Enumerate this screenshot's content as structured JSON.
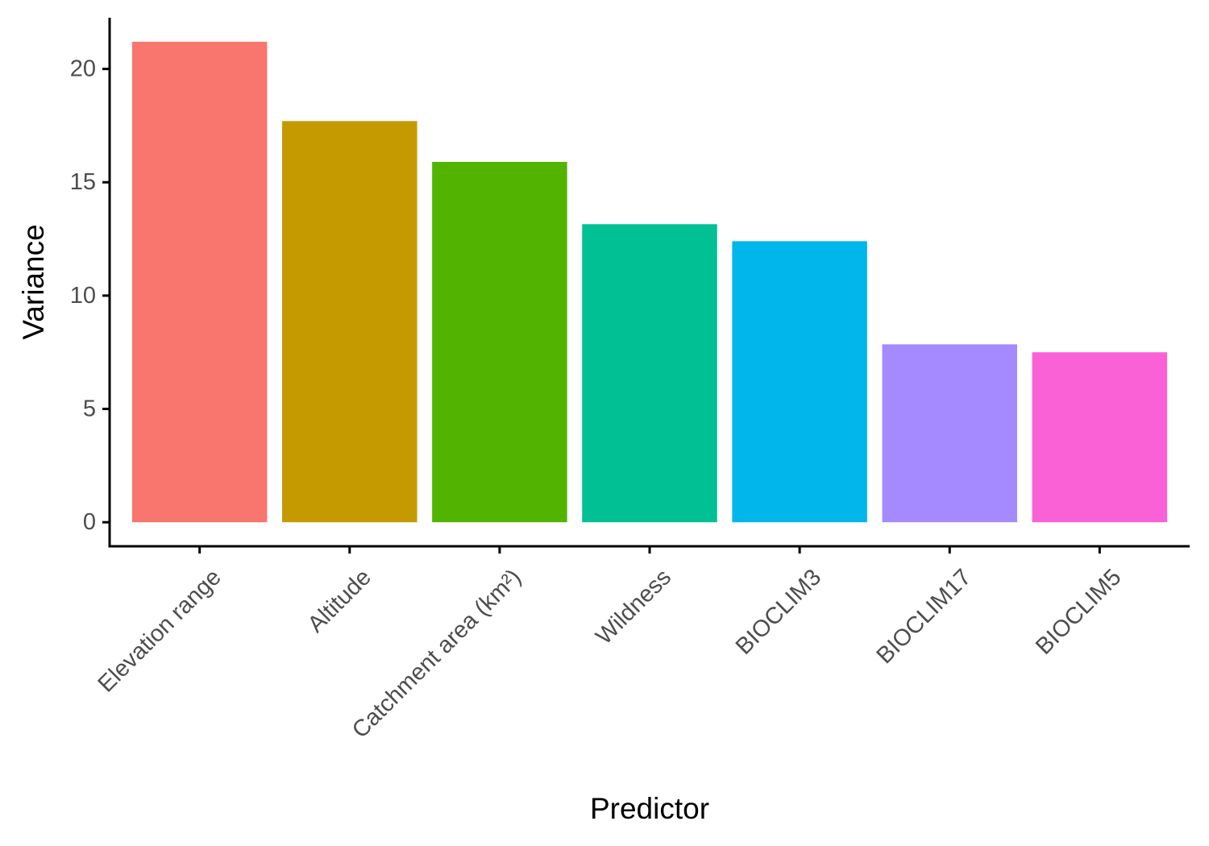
{
  "chart_data": {
    "type": "bar",
    "categories": [
      "Elevation range",
      "Altitude",
      "Catchment area (km²)",
      "Wildness",
      "BIOCLIM3",
      "BIOCLIM17",
      "BIOCLIM5"
    ],
    "values": [
      21.2,
      17.7,
      15.9,
      13.15,
      12.4,
      7.85,
      7.5
    ],
    "colors": [
      "#F8766D",
      "#C49A00",
      "#53B400",
      "#00C094",
      "#00B6EB",
      "#A58AFF",
      "#FB61D7"
    ],
    "xlabel": "Predictor",
    "ylabel": "Variance",
    "ylim": [
      -1.06,
      22.26
    ],
    "yticks": [
      0,
      5,
      10,
      15,
      20
    ],
    "grid": false,
    "legend": "none"
  }
}
